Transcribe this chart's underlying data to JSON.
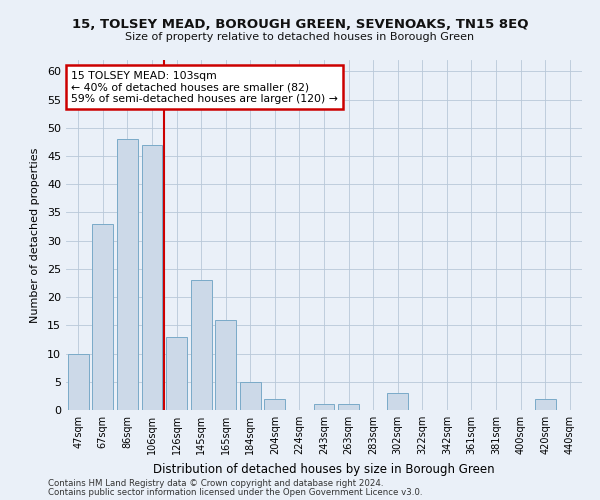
{
  "title": "15, TOLSEY MEAD, BOROUGH GREEN, SEVENOAKS, TN15 8EQ",
  "subtitle": "Size of property relative to detached houses in Borough Green",
  "xlabel": "Distribution of detached houses by size in Borough Green",
  "ylabel": "Number of detached properties",
  "categories": [
    "47sqm",
    "67sqm",
    "86sqm",
    "106sqm",
    "126sqm",
    "145sqm",
    "165sqm",
    "184sqm",
    "204sqm",
    "224sqm",
    "243sqm",
    "263sqm",
    "283sqm",
    "302sqm",
    "322sqm",
    "342sqm",
    "361sqm",
    "381sqm",
    "400sqm",
    "420sqm",
    "440sqm"
  ],
  "values": [
    10,
    33,
    48,
    47,
    13,
    23,
    16,
    5,
    2,
    0,
    1,
    1,
    0,
    3,
    0,
    0,
    0,
    0,
    0,
    2,
    0
  ],
  "bar_color": "#ccd9e8",
  "bar_edge_color": "#7aaac8",
  "ylim": [
    0,
    62
  ],
  "yticks": [
    0,
    5,
    10,
    15,
    20,
    25,
    30,
    35,
    40,
    45,
    50,
    55,
    60
  ],
  "property_line_x": 3.5,
  "annotation_line1": "15 TOLSEY MEAD: 103sqm",
  "annotation_line2": "← 40% of detached houses are smaller (82)",
  "annotation_line3": "59% of semi-detached houses are larger (120) →",
  "annotation_box_color": "#ffffff",
  "annotation_box_edge": "#cc0000",
  "vline_color": "#cc0000",
  "footer1": "Contains HM Land Registry data © Crown copyright and database right 2024.",
  "footer2": "Contains public sector information licensed under the Open Government Licence v3.0.",
  "background_color": "#eaf0f8",
  "plot_background": "#eaf0f8",
  "grid_color": "#b8c8d8"
}
